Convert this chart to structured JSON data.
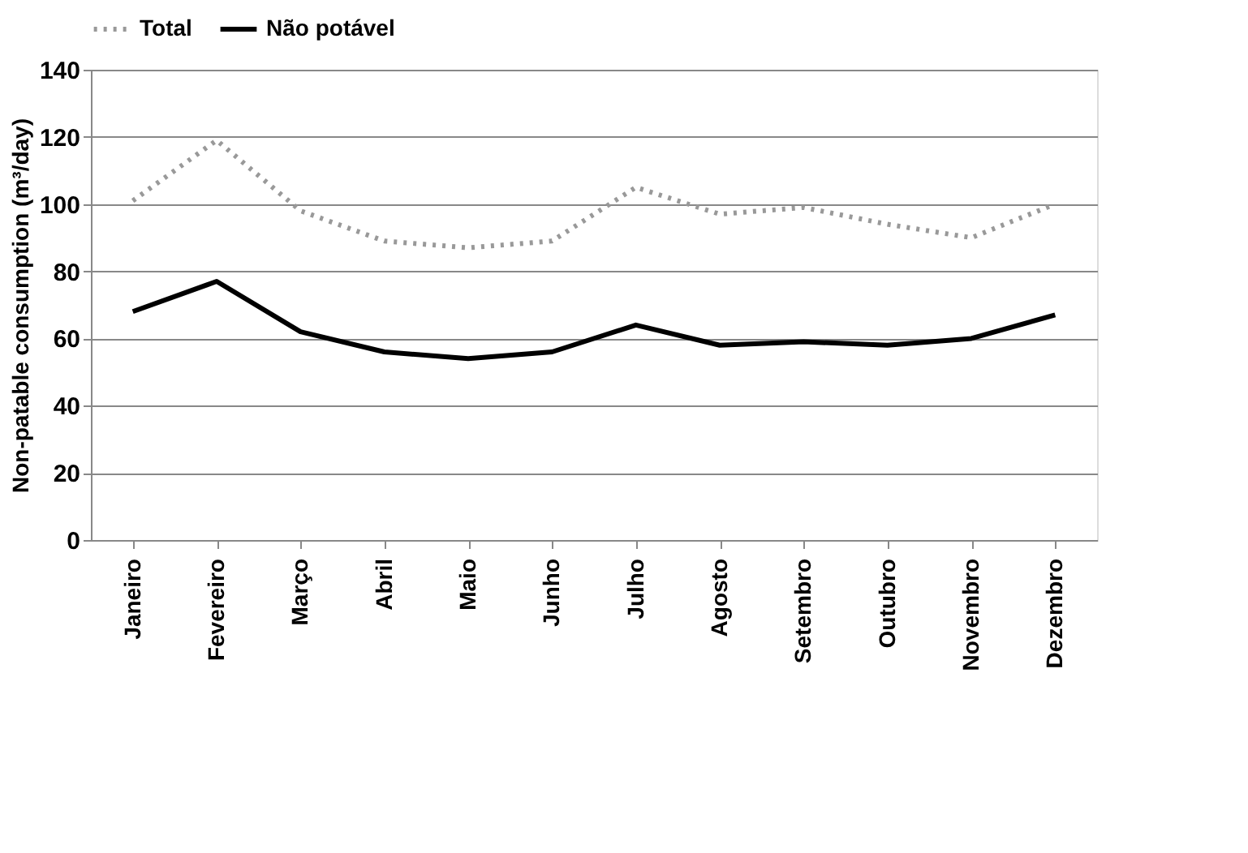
{
  "chart_data": {
    "type": "line",
    "ylabel": "Non-patable consumption (m³/day)",
    "categories": [
      "Janeiro",
      "Fevereiro",
      "Março",
      "Abril",
      "Maio",
      "Junho",
      "Julho",
      "Agosto",
      "Setembro",
      "Outubro",
      "Novembro",
      "Dezembro"
    ],
    "series": [
      {
        "name": "Total",
        "color": "#999999",
        "line_style": "dotted",
        "values": [
          101,
          119,
          98,
          89,
          87,
          89,
          105,
          97,
          99,
          94,
          90,
          100
        ]
      },
      {
        "name": "Não potável",
        "color": "#000000",
        "line_style": "solid",
        "values": [
          68,
          77,
          62,
          56,
          54,
          56,
          64,
          58,
          59,
          58,
          60,
          67
        ]
      }
    ],
    "ylim": [
      0,
      140
    ],
    "yticks": [
      0,
      20,
      40,
      60,
      80,
      100,
      120,
      140
    ],
    "grid": "y",
    "legend": "top",
    "marker": "none"
  }
}
